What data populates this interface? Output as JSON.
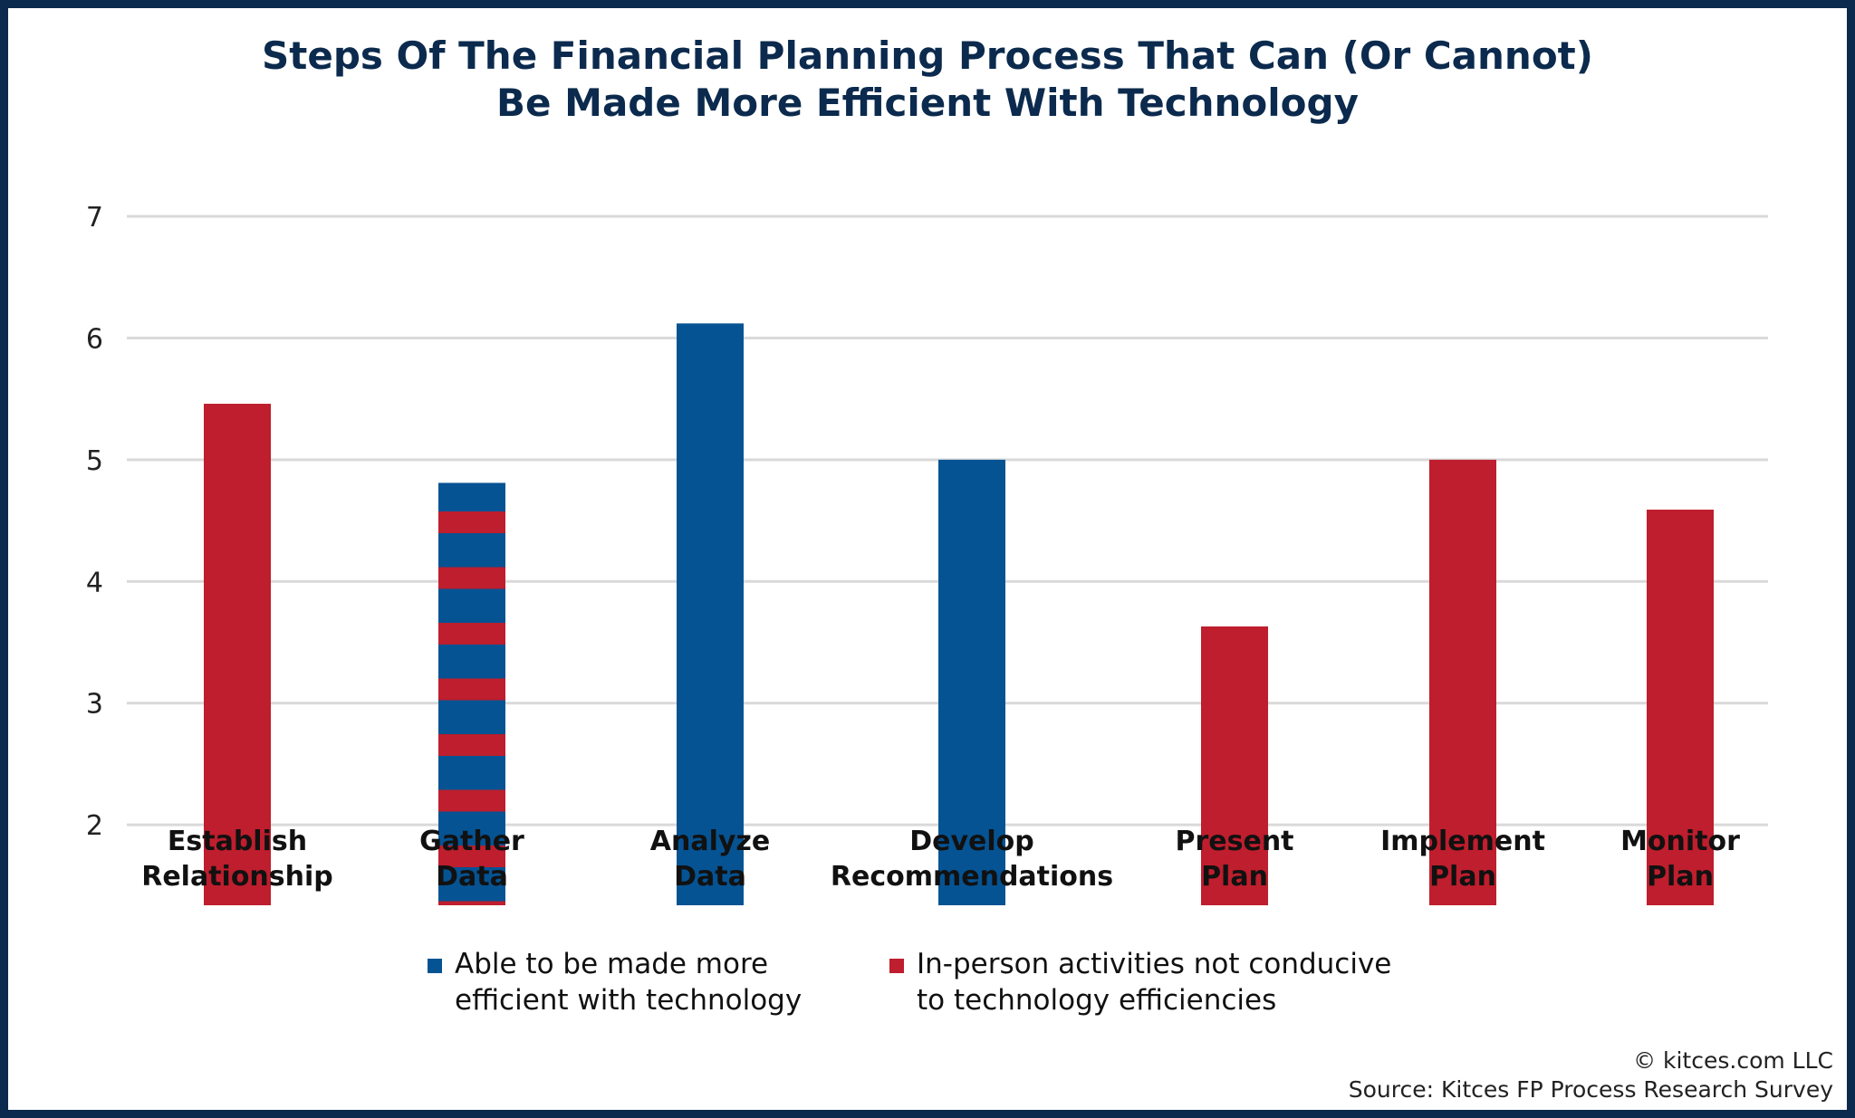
{
  "chart_data": {
    "type": "bar",
    "title": "Steps Of The Financial Planning Process That Can (Or Cannot) Be Made More Efficient With Technology",
    "title_lines": [
      "Steps Of The Financial Planning Process That Can (Or Cannot)",
      "Be Made More Efficient With Technology"
    ],
    "categories": [
      [
        "Establish",
        "Relationship"
      ],
      [
        "Gather",
        "Data"
      ],
      [
        "Analyze",
        "Data"
      ],
      [
        "Develop",
        "Recommendations"
      ],
      [
        "Present",
        "Plan"
      ],
      [
        "Implement",
        "Plan"
      ],
      [
        "Monitor",
        "Plan"
      ]
    ],
    "values": [
      5.46,
      4.81,
      6.12,
      5.0,
      3.63,
      5.0,
      4.59
    ],
    "bar_class": [
      "in-person",
      "mixed",
      "technology",
      "technology",
      "in-person",
      "in-person",
      "in-person"
    ],
    "ylim": [
      0,
      7
    ],
    "yticks": [
      "0",
      "1",
      "2",
      "3",
      "4",
      "5",
      "6",
      "7"
    ],
    "grid": true,
    "legend_placement": "bottom",
    "legend": [
      {
        "key": "technology",
        "lines": [
          "Able to be made more",
          "efficient with technology"
        ],
        "color": "#055393"
      },
      {
        "key": "in-person",
        "lines": [
          "In-person activities not conducive",
          "to technology efficiencies"
        ],
        "color": "#BE1E2D"
      }
    ],
    "colors": {
      "technology": "#055393",
      "in-person": "#BE1E2D",
      "title": "#0B2A4D",
      "grid": "#D9D9D9"
    }
  },
  "footer": {
    "copyright": "© kitces.com LLC",
    "source": "Source: Kitces FP Process Research Survey"
  }
}
